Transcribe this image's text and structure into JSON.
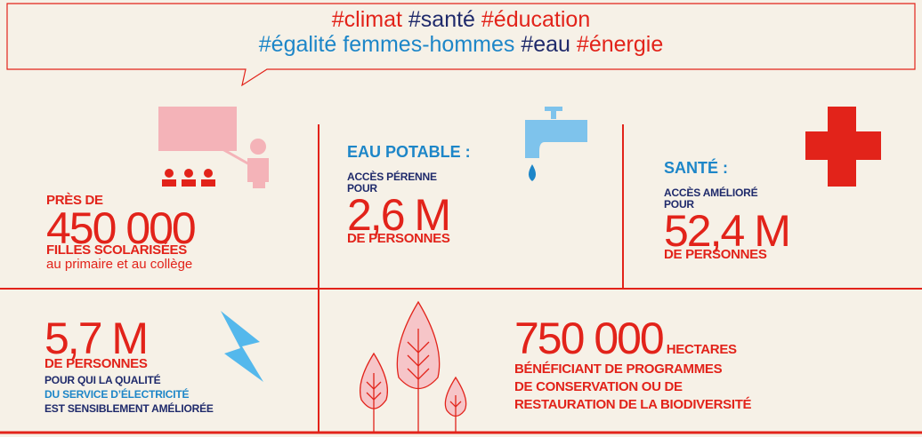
{
  "hashtags": [
    "#climat",
    "#santé",
    "#éducation",
    "#égalité femmes-hommes",
    "#eau",
    "#énergie"
  ],
  "education": {
    "intro": "PRÈS DE",
    "figure": "450 000",
    "label": "FILLES SCOLARISÉES",
    "detail": "au primaire et au collège"
  },
  "water": {
    "heading": "EAU POTABLE :",
    "intro": "ACCÈS PÉRENNE POUR",
    "figure": "2,6 M",
    "label": "DE PERSONNES"
  },
  "health": {
    "heading": "SANTÉ :",
    "intro": "ACCÈS AMÉLIORÉ POUR",
    "figure": "52,4 M",
    "label": "DE PERSONNES"
  },
  "energy": {
    "figure": "5,7 M",
    "label": "DE PERSONNES",
    "details": [
      "POUR QUI LA QUALITÉ",
      "DU SERVICE D’ÉLECTRICITÉ",
      "EST SENSIBLEMENT AMÉLIORÉE"
    ]
  },
  "biodiversity": {
    "figure": "750 000",
    "unit": "HECTARES",
    "details": [
      "BÉNÉFICIANT DE PROGRAMMES",
      "DE CONSERVATION OU DE",
      "RESTAURATION DE LA BIODIVERSITÉ"
    ]
  }
}
